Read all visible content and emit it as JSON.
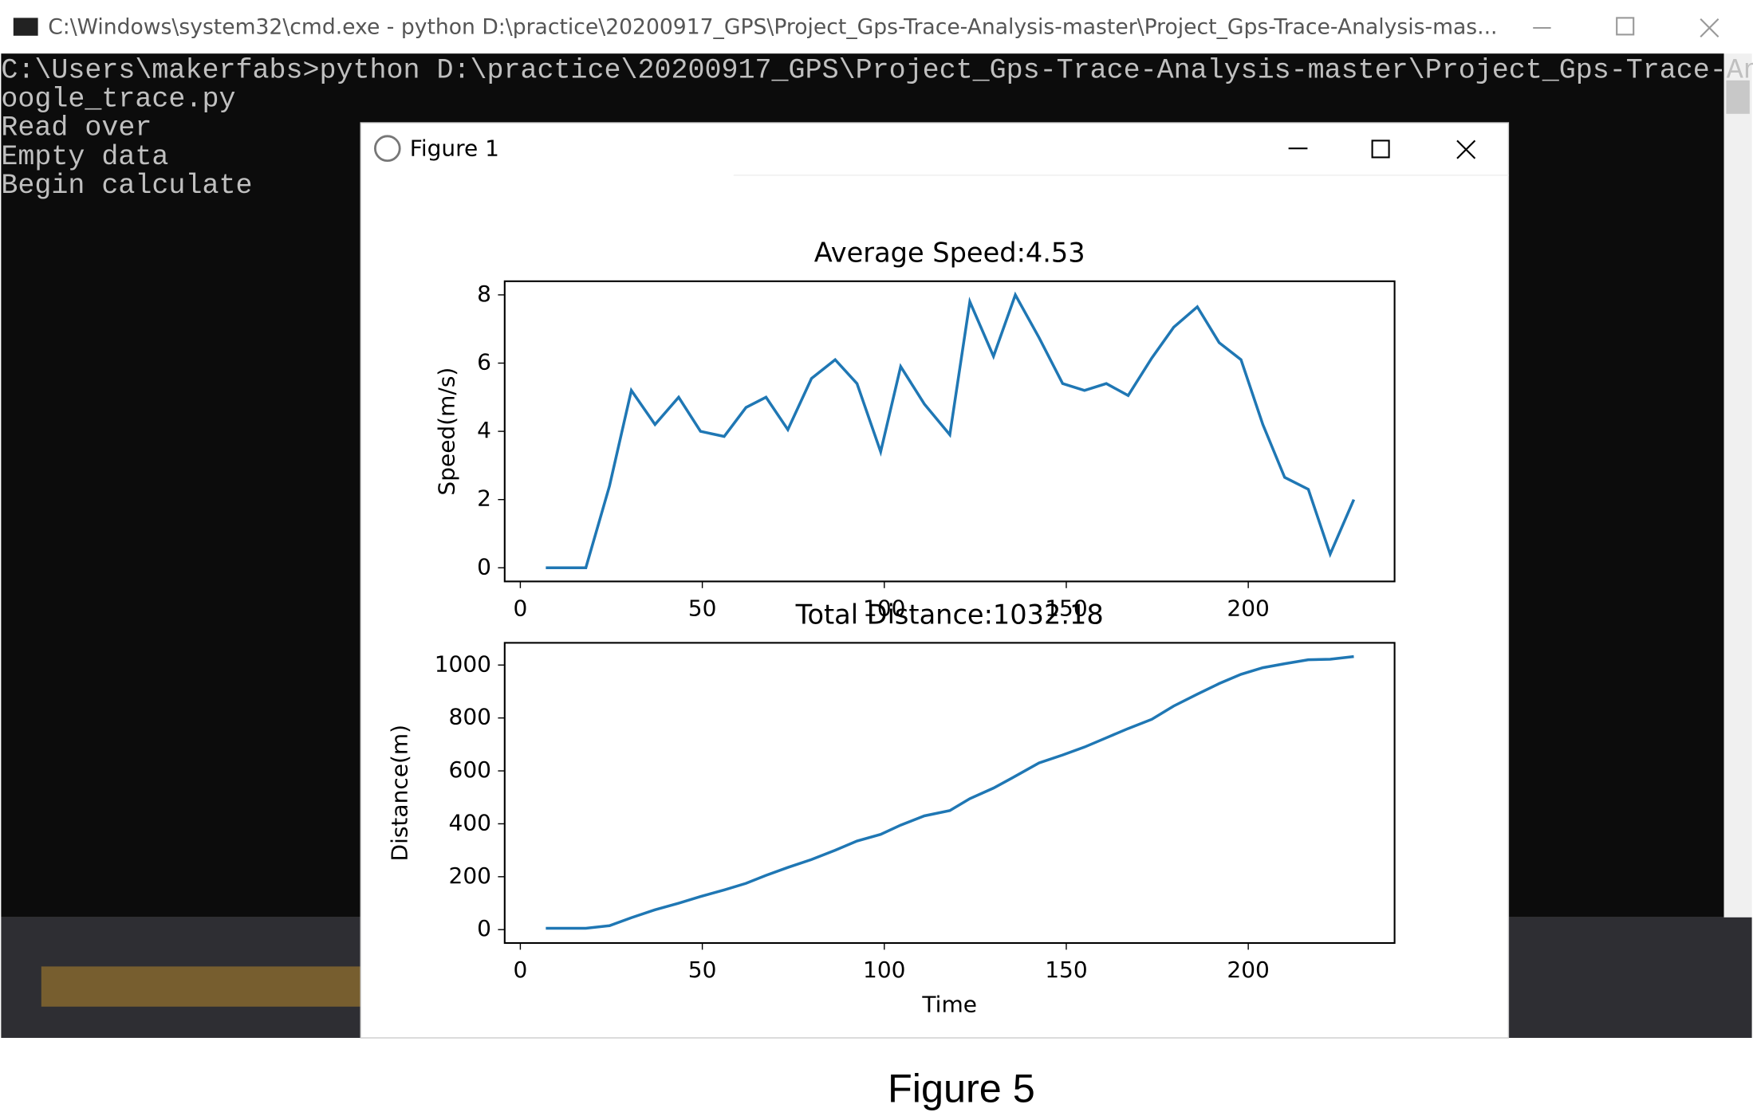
{
  "terminal": {
    "title": "C:\\Windows\\system32\\cmd.exe - python  D:\\practice\\20200917_GPS\\Project_Gps-Trace-Analysis-master\\Project_Gps-Trace-Analysis-mas...",
    "lines": [
      "C:\\Users\\makerfabs>python D:\\practice\\20200917_GPS\\Project_Gps-Trace-Analysis-master\\Project_Gps-Trace-Analysis-master\\G",
      "oogle_trace.py",
      "Read over",
      "Empty data",
      "Begin calculate"
    ]
  },
  "figure_window": {
    "title": "Figure 1"
  },
  "chart_data": [
    {
      "type": "line",
      "title": "Average Speed:4.53",
      "y_label": "Speed(m/s)",
      "color": "#1f77b4",
      "x": [
        7,
        18,
        24.5,
        30.5,
        37,
        43.5,
        49.5,
        56,
        62,
        67.5,
        73.5,
        80,
        86.5,
        92.5,
        99,
        104.5,
        111,
        118,
        123.5,
        130,
        136,
        142.5,
        149,
        155,
        161,
        167,
        173.5,
        179.5,
        186,
        192,
        198,
        204,
        210,
        216.5,
        222.5,
        229
      ],
      "values": [
        0,
        0,
        2.4,
        5.2,
        4.2,
        5.0,
        4.0,
        3.85,
        4.7,
        5.0,
        4.05,
        5.55,
        6.1,
        5.4,
        3.4,
        5.9,
        4.8,
        3.9,
        7.8,
        6.2,
        8.0,
        6.75,
        5.4,
        5.2,
        5.4,
        5.05,
        6.15,
        7.05,
        7.65,
        6.6,
        6.1,
        4.2,
        2.65,
        2.3,
        0.4,
        2.0
      ],
      "xlim": [
        -4.3,
        240.2
      ],
      "ylim": [
        -0.4,
        8.4
      ],
      "xticks": [
        0,
        50,
        100,
        150,
        200
      ],
      "yticks": [
        0,
        2,
        4,
        6,
        8
      ]
    },
    {
      "type": "line",
      "title": "Total Distance:1032.18",
      "x_label": "Time",
      "y_label": "Distance(m)",
      "color": "#1f77b4",
      "x": [
        7,
        18,
        24.5,
        30.5,
        37,
        43.5,
        49.5,
        56,
        62,
        67.5,
        73.5,
        80,
        86.5,
        92.5,
        99,
        104.5,
        111,
        118,
        123.5,
        130,
        136,
        142.5,
        149,
        155,
        161,
        167,
        173.5,
        179.5,
        186,
        192,
        198,
        204,
        210,
        216.5,
        222.5,
        229
      ],
      "values": [
        5,
        5,
        15,
        45,
        75,
        100,
        125,
        150,
        175,
        205,
        235,
        265,
        300,
        335,
        360,
        395,
        430,
        450,
        495,
        535,
        580,
        630,
        660,
        690,
        725,
        760,
        795,
        845,
        890,
        930,
        965,
        990,
        1005,
        1020,
        1022,
        1032
      ],
      "xlim": [
        -4.3,
        240.2
      ],
      "ylim": [
        -50.6,
        1084
      ],
      "xticks": [
        0,
        50,
        100,
        150,
        200
      ],
      "yticks": [
        0,
        200,
        400,
        600,
        800,
        1000
      ]
    }
  ],
  "caption": "Figure 5"
}
